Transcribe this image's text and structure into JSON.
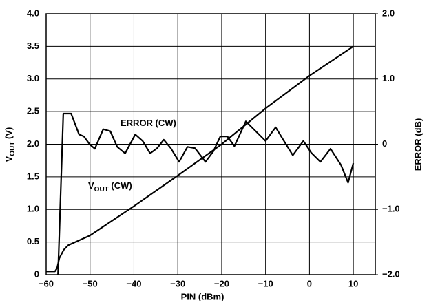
{
  "chart_data": {
    "type": "line",
    "ylabel_parts": [
      "V",
      "OUT",
      " (V)"
    ],
    "y2label": "ERROR (dB)",
    "xlabel": "PIN (dBm)",
    "annotations": [
      {
        "parts": [
          "ERROR (CW)"
        ]
      },
      {
        "parts": [
          "V",
          "OUT",
          " (CW)"
        ]
      }
    ],
    "xlim": [
      -60,
      15
    ],
    "xticks": [
      {
        "value": -60,
        "label": "−60"
      },
      {
        "value": -50,
        "label": "−50"
      },
      {
        "value": -40,
        "label": "−40"
      },
      {
        "value": -30,
        "label": "−30"
      },
      {
        "value": -20,
        "label": "−20"
      },
      {
        "value": -10,
        "label": "−10"
      },
      0,
      10
    ],
    "ylim": [
      0,
      4
    ],
    "yticks": [
      0,
      {
        "value": 0.5,
        "label": "0.5"
      },
      {
        "value": 1,
        "label": "1.0"
      },
      {
        "value": 1.5,
        "label": "1.5"
      },
      {
        "value": 2,
        "label": "2.0"
      },
      {
        "value": 2.5,
        "label": "2.5"
      },
      {
        "value": 3,
        "label": "3.0"
      },
      {
        "value": 3.5,
        "label": "3.5"
      },
      {
        "value": 4,
        "label": "4.0"
      }
    ],
    "y2lim": [
      -2,
      2
    ],
    "y2ticks": [
      {
        "value": -2,
        "label": "−2.0"
      },
      {
        "value": -1,
        "label": "−1.0"
      },
      0,
      {
        "value": 1,
        "label": "1.0"
      },
      {
        "value": 2,
        "label": "2.0"
      }
    ],
    "grid": true,
    "series": [
      {
        "color": "#000000",
        "x": [
          -60,
          -58,
          -57.5,
          -57,
          -56,
          -55,
          -50,
          -40,
          -30,
          -20,
          -10,
          0,
          10
        ],
        "values": [
          0.05,
          0.05,
          0.1,
          0.25,
          0.38,
          0.45,
          0.6,
          1.05,
          1.52,
          2.0,
          2.55,
          3.05,
          3.5
        ]
      },
      {
        "color": "#000000",
        "axis": "y2",
        "x": [
          -57.3,
          -56.1,
          -54.3,
          -52.5,
          -51.4,
          -50.1,
          -48.9,
          -47,
          -45.4,
          -43.8,
          -42,
          -39.7,
          -38,
          -36.3,
          -34.7,
          -33.2,
          -31.6,
          -29.7,
          -27.8,
          -26.1,
          -23.7,
          -21.9,
          -20.3,
          -18.7,
          -17.1,
          -14.5,
          -12.4,
          -10,
          -7.7,
          -5.8,
          -3.8,
          -1.4,
          0.4,
          2.5,
          4.8,
          7.2,
          8.8,
          10
        ],
        "values": [
          -2,
          0.47,
          0.47,
          0.15,
          0.12,
          0,
          -0.07,
          0.23,
          0.2,
          -0.04,
          -0.14,
          0.15,
          0.05,
          -0.14,
          -0.06,
          0.07,
          -0.06,
          -0.27,
          -0.04,
          -0.06,
          -0.27,
          -0.11,
          0.12,
          0.12,
          -0.03,
          0.35,
          0.21,
          0.05,
          0.26,
          0.05,
          -0.17,
          0.05,
          -0.13,
          -0.27,
          -0.07,
          -0.32,
          -0.59,
          -0.29
        ]
      }
    ]
  }
}
